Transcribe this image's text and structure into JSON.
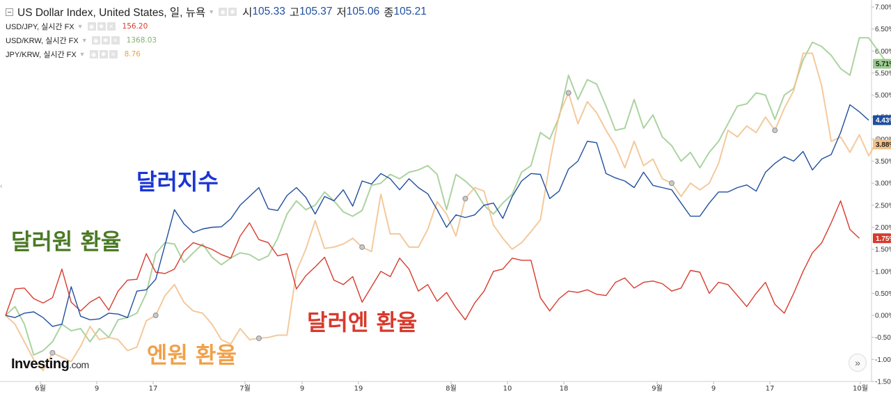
{
  "chart_data": {
    "type": "line",
    "y_axis": {
      "ticks": [
        "7.00%",
        "6.50%",
        "6.00%",
        "5.50%",
        "5.00%",
        "4.50%",
        "4.00%",
        "3.50%",
        "3.00%",
        "2.50%",
        "2.00%",
        "1.50%",
        "1.00%",
        "0.50%",
        "0.00%",
        "-0.50%",
        "-1.00%",
        "-1.50%"
      ],
      "range": [
        -1.5,
        7.0
      ],
      "unit": "%"
    },
    "x_axis": {
      "ticks": [
        "6월",
        "9",
        "17",
        "7월",
        "9",
        "19",
        "8월",
        "10",
        "18",
        "9월",
        "9",
        "17",
        "10월"
      ]
    },
    "grid": false,
    "series": [
      {
        "name": "US Dollar Index",
        "color": "#1f4e9e",
        "last_value_label": "4.43%",
        "values": [
          0.0,
          -0.05,
          0.05,
          0.08,
          -0.05,
          -0.25,
          -0.2,
          0.65,
          -0.02,
          -0.1,
          -0.08,
          0.05,
          0.03,
          -0.05,
          0.55,
          0.58,
          0.82,
          1.6,
          2.4,
          2.08,
          1.88,
          1.96,
          2.0,
          2.01,
          2.19,
          2.5,
          2.7,
          2.9,
          2.42,
          2.38,
          2.72,
          2.9,
          2.68,
          2.3,
          2.7,
          2.6,
          2.85,
          2.48,
          3.05,
          2.98,
          3.22,
          3.1,
          2.85,
          3.1,
          2.9,
          2.76,
          2.4,
          2.0,
          2.28,
          2.22,
          2.28,
          2.5,
          2.55,
          2.2,
          2.7,
          3.05,
          3.22,
          3.2,
          2.65,
          2.82,
          3.32,
          3.5,
          3.95,
          3.92,
          3.22,
          3.12,
          3.05,
          2.9,
          3.25,
          2.95,
          2.9,
          2.85,
          2.55,
          2.25,
          2.25,
          2.55,
          2.8,
          2.8,
          2.9,
          2.96,
          2.82,
          3.25,
          3.45,
          3.6,
          3.5,
          3.72,
          3.3,
          3.55,
          3.65,
          4.15,
          4.78,
          4.62,
          4.43
        ]
      },
      {
        "name": "USD/KRW, 실시간 FX",
        "color": "#9ccb8f",
        "last_value_label": "5.71%",
        "values": [
          0.0,
          0.2,
          -0.2,
          -0.9,
          -0.8,
          -0.6,
          -0.2,
          -0.35,
          -0.3,
          -0.6,
          -0.3,
          -0.5,
          -0.1,
          -0.05,
          0.05,
          0.5,
          1.4,
          1.65,
          1.62,
          1.2,
          1.42,
          1.62,
          1.32,
          1.15,
          1.3,
          1.42,
          1.38,
          1.25,
          1.35,
          1.75,
          2.3,
          2.6,
          2.4,
          2.5,
          2.8,
          2.6,
          2.35,
          2.25,
          2.38,
          2.95,
          3.0,
          3.2,
          3.1,
          3.25,
          3.3,
          3.4,
          3.2,
          2.4,
          3.2,
          3.05,
          2.85,
          2.5,
          2.3,
          2.55,
          2.75,
          3.25,
          3.4,
          4.15,
          4.0,
          4.5,
          5.45,
          4.9,
          5.35,
          5.25,
          4.75,
          4.2,
          4.25,
          4.9,
          4.25,
          4.55,
          4.05,
          3.85,
          3.5,
          3.7,
          3.35,
          3.7,
          3.95,
          4.35,
          4.75,
          4.8,
          5.05,
          5.0,
          4.45,
          5.0,
          5.15,
          5.8,
          6.2,
          6.1,
          5.9,
          5.6,
          5.45,
          6.3,
          6.3,
          6.0,
          5.71
        ]
      },
      {
        "name": "JPY/KRW, 실시간 FX",
        "color": "#f2c089",
        "last_value_label": "3.88%",
        "values": [
          0.0,
          -0.2,
          -0.6,
          -1.0,
          -1.25,
          -0.85,
          -0.95,
          -1.05,
          -0.7,
          -0.25,
          -0.55,
          -0.5,
          -0.55,
          -0.8,
          -0.72,
          -0.12,
          0.0,
          0.45,
          0.7,
          0.3,
          0.1,
          0.05,
          -0.2,
          -0.55,
          -0.65,
          -0.3,
          -0.55,
          -0.52,
          -0.5,
          -0.45,
          -0.45,
          1.0,
          1.5,
          2.15,
          1.52,
          1.55,
          1.62,
          1.75,
          1.55,
          1.45,
          2.75,
          1.85,
          1.85,
          1.55,
          1.55,
          1.95,
          2.58,
          2.3,
          1.8,
          2.65,
          2.9,
          2.82,
          2.05,
          1.75,
          1.5,
          1.65,
          1.9,
          2.17,
          3.45,
          4.55,
          5.05,
          4.35,
          4.85,
          4.6,
          4.2,
          3.85,
          3.35,
          3.95,
          3.4,
          3.55,
          3.1,
          3.0,
          2.7,
          3.0,
          2.85,
          3.0,
          3.45,
          4.2,
          4.05,
          4.3,
          4.15,
          4.5,
          4.2,
          4.7,
          5.1,
          5.95,
          5.95,
          5.2,
          3.95,
          4.05,
          3.7,
          4.1,
          3.62,
          4.0,
          3.88
        ]
      },
      {
        "name": "USD/JPY, 실시간 FX",
        "color": "#d73a2c",
        "last_value_label": "1.75%",
        "values": [
          0.0,
          0.6,
          0.62,
          0.38,
          0.28,
          0.4,
          1.05,
          0.3,
          0.1,
          0.3,
          0.42,
          0.12,
          0.55,
          0.8,
          0.82,
          1.4,
          0.98,
          0.95,
          1.05,
          1.45,
          1.65,
          1.58,
          1.5,
          1.38,
          1.3,
          1.8,
          2.1,
          1.72,
          1.65,
          1.35,
          1.4,
          0.6,
          0.9,
          1.1,
          1.32,
          0.8,
          0.7,
          0.88,
          0.3,
          0.65,
          1.0,
          0.88,
          1.3,
          1.05,
          0.55,
          0.7,
          0.32,
          0.52,
          0.18,
          -0.1,
          0.28,
          0.55,
          1.0,
          1.05,
          1.3,
          1.25,
          1.25,
          0.4,
          0.1,
          0.38,
          0.55,
          0.52,
          0.58,
          0.48,
          0.45,
          0.75,
          0.85,
          0.62,
          0.75,
          0.78,
          0.72,
          0.55,
          0.62,
          1.02,
          0.98,
          0.5,
          0.75,
          0.7,
          0.45,
          0.2,
          0.5,
          0.75,
          0.25,
          0.05,
          0.5,
          1.0,
          1.42,
          1.65,
          2.1,
          2.6,
          1.95,
          1.75
        ]
      }
    ],
    "markers_on_series": "JPY/KRW, 실시간 FX",
    "markers_at_index": [
      5,
      16,
      27,
      38,
      49,
      60,
      71,
      82,
      93
    ],
    "annotations": [
      {
        "text": "달러지수",
        "color": "#1a35d6"
      },
      {
        "text": "달러원 환율",
        "color": "#4b7a25"
      },
      {
        "text": "달러엔 환율",
        "color": "#d73a2c"
      },
      {
        "text": "엔원 환율",
        "color": "#f0a14a"
      }
    ]
  },
  "legend": {
    "main": {
      "title": "US Dollar Index, United States, 일, 뉴욕",
      "open_label": "시",
      "open_value": "105.33",
      "high_label": "고",
      "high_value": "105.37",
      "low_label": "저",
      "low_value": "105.06",
      "close_label": "종",
      "close_value": "105.21"
    },
    "subs": [
      {
        "name": "USD/JPY, 실시간 FX",
        "value": "156.20",
        "color": "#d73a2c"
      },
      {
        "name": "USD/KRW, 실시간 FX",
        "value": "1368.03",
        "color": "#7fb36b"
      },
      {
        "name": "JPY/KRW, 실시간 FX",
        "value": "8.76",
        "color": "#e8a24f"
      }
    ]
  },
  "branding": {
    "logo_main": "Investing",
    "logo_suffix": ".com"
  },
  "icons": {
    "scroll_right": "double-chevron-right-icon",
    "collapse": "collapse-box-icon"
  }
}
